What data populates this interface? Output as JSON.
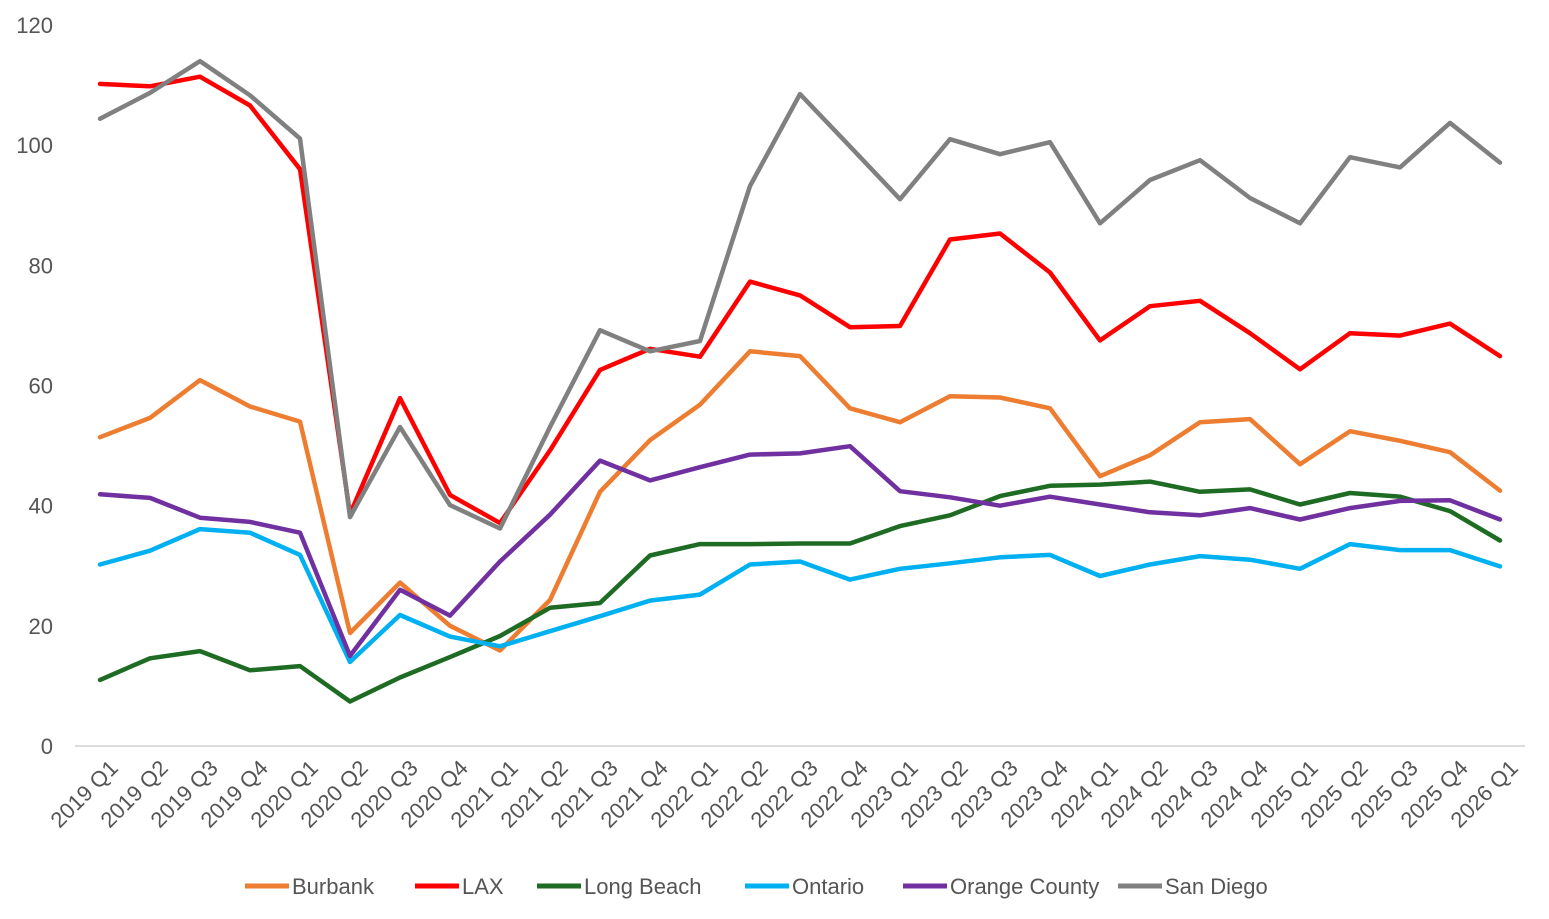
{
  "chart_data": {
    "type": "line",
    "title": "",
    "xlabel": "",
    "ylabel": "",
    "ylim": [
      0,
      120
    ],
    "yticks": [
      0,
      20,
      40,
      60,
      80,
      100,
      120
    ],
    "grid": false,
    "legend_position": "bottom",
    "categories": [
      "2019 Q1",
      "2019 Q2",
      "2019 Q3",
      "2019 Q4",
      "2020 Q1",
      "2020 Q2",
      "2020 Q3",
      "2020 Q4",
      "2021 Q1",
      "2021 Q2",
      "2021 Q3",
      "2021 Q4",
      "2022 Q1",
      "2022 Q2",
      "2022 Q3",
      "2022 Q4",
      "2023 Q1",
      "2023 Q2",
      "2023 Q3",
      "2023 Q4",
      "2024 Q1",
      "2024 Q2",
      "2024 Q3",
      "2024 Q4",
      "2025 Q1",
      "2025 Q2",
      "2025 Q3",
      "2025 Q4",
      "2026 Q1"
    ],
    "series": [
      {
        "name": "Burbank",
        "color": "#ED7D31",
        "values": [
          51.4,
          54.6,
          60.9,
          56.5,
          54.0,
          18.8,
          27.2,
          20.0,
          15.9,
          24.3,
          42.3,
          50.9,
          56.8,
          65.7,
          64.9,
          56.2,
          53.9,
          58.2,
          58.0,
          56.2,
          44.9,
          48.4,
          53.9,
          54.4,
          46.9,
          52.4,
          50.8,
          48.9,
          42.5
        ]
      },
      {
        "name": "LAX",
        "color": "#FF0000",
        "values": [
          110.2,
          109.8,
          111.4,
          106.6,
          96.0,
          38.6,
          57.9,
          41.8,
          37.1,
          49.2,
          62.6,
          66.1,
          64.8,
          77.3,
          75.0,
          69.7,
          69.9,
          84.3,
          85.3,
          78.8,
          67.5,
          73.2,
          74.1,
          68.7,
          62.7,
          68.7,
          68.3,
          70.3,
          64.9
        ]
      },
      {
        "name": "Long Beach",
        "color": "#1E6B23",
        "values": [
          11.0,
          14.6,
          15.8,
          12.6,
          13.3,
          7.4,
          11.4,
          14.8,
          18.3,
          23.0,
          23.8,
          31.7,
          33.6,
          33.6,
          33.7,
          33.7,
          36.6,
          38.4,
          41.6,
          43.3,
          43.5,
          44.0,
          42.3,
          42.7,
          40.2,
          42.1,
          41.5,
          39.1,
          34.2
        ]
      },
      {
        "name": "Ontario",
        "color": "#00B0F0",
        "values": [
          30.2,
          32.5,
          36.1,
          35.5,
          31.8,
          14.0,
          21.8,
          18.2,
          16.6,
          19.1,
          21.6,
          24.2,
          25.2,
          30.2,
          30.7,
          27.7,
          29.5,
          30.4,
          31.4,
          31.8,
          28.3,
          30.2,
          31.6,
          31.0,
          29.5,
          33.6,
          32.6,
          32.6,
          29.9
        ]
      },
      {
        "name": "Orange County",
        "color": "#7030A0",
        "values": [
          41.9,
          41.3,
          38.0,
          37.3,
          35.5,
          15.0,
          26.0,
          21.7,
          30.7,
          38.5,
          47.5,
          44.2,
          46.4,
          48.5,
          48.7,
          49.9,
          42.4,
          41.4,
          40.0,
          41.5,
          40.2,
          38.9,
          38.4,
          39.6,
          37.7,
          39.6,
          40.8,
          40.9,
          37.7
        ]
      },
      {
        "name": "San Diego",
        "color": "#808080",
        "values": [
          104.4,
          108.7,
          114.0,
          108.3,
          101.1,
          38.1,
          53.1,
          40.1,
          36.2,
          53.1,
          69.2,
          65.7,
          67.4,
          93.2,
          108.5,
          99.8,
          91.0,
          101.0,
          98.5,
          100.5,
          87.0,
          94.2,
          97.5,
          91.2,
          87.0,
          98.0,
          96.3,
          103.7,
          97.1
        ]
      }
    ]
  }
}
